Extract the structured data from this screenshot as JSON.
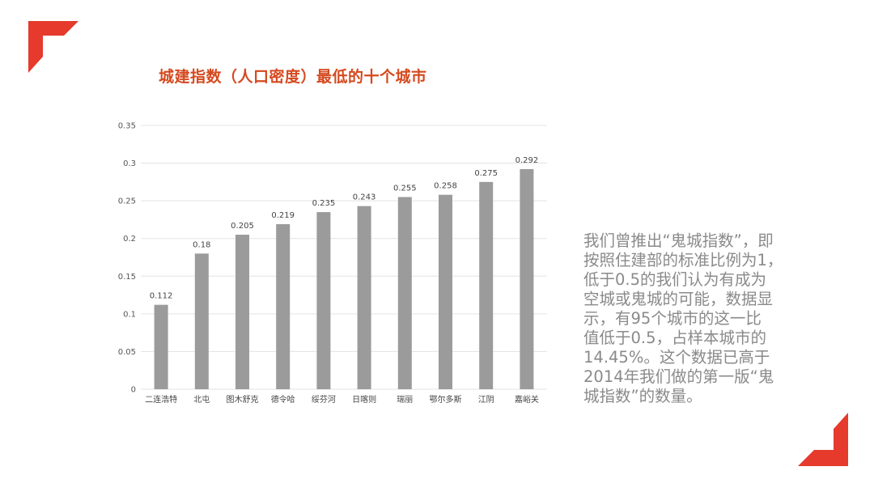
{
  "slide": {
    "title": "城建指数（人口密度）最低的十个城市",
    "body_lines": [
      "我们曾推出“鬼城指数”，即",
      "按照住建部的标准比例为1，",
      "低于0.5的我们认为有成为",
      "空城或鬼城的可能，数据显",
      "示，有95个城市的这一比",
      "值低于0.5，占样本城市的",
      "14.45%。这个数据已高于",
      "2014年我们做的第一版“鬼",
      "城指数”的数量。"
    ]
  },
  "colors": {
    "accent": "#e53a2c",
    "title": "#d5491f",
    "bar": "#9b9b9b",
    "body_text": "#8a8a8a",
    "grid": "#e3e3e3"
  },
  "chart_data": {
    "type": "bar",
    "categories": [
      "二连浩特",
      "北屯",
      "图木舒克",
      "德令哈",
      "绥芬河",
      "日喀则",
      "瑞丽",
      "鄂尔多斯",
      "江阴",
      "嘉峪关"
    ],
    "values": [
      0.112,
      0.18,
      0.205,
      0.219,
      0.235,
      0.243,
      0.255,
      0.258,
      0.275,
      0.292
    ],
    "data_labels": [
      "0.112",
      "0.18",
      "0.205",
      "0.219",
      "0.235",
      "0.243",
      "0.255",
      "0.258",
      "0.275",
      "0.292"
    ],
    "y_ticks": [
      0,
      0.05,
      0.1,
      0.15,
      0.2,
      0.25,
      0.3,
      0.35
    ],
    "y_tick_labels": [
      "0",
      "0.05",
      "0.1",
      "0.15",
      "0.2",
      "0.25",
      "0.3",
      "0.35"
    ],
    "ylim": [
      0,
      0.35
    ],
    "grid": true,
    "legend": "none"
  }
}
